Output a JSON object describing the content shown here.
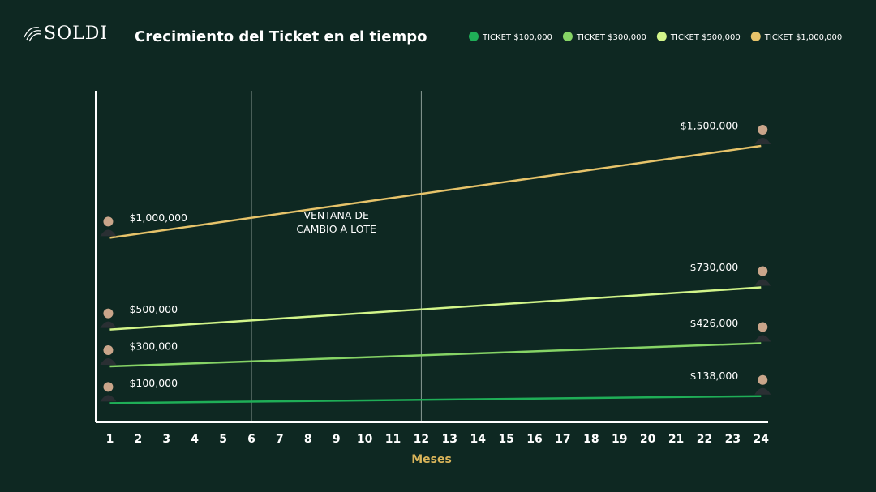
{
  "brand": "SOLDI",
  "chart_data": {
    "type": "line",
    "title": "Crecimiento del Ticket en el tiempo",
    "x_label": "Meses",
    "annotation": "VENTANA DE\nCAMBIO A LOTE",
    "window": [
      6,
      12
    ],
    "x": [
      1,
      24
    ],
    "xlim": [
      0.5,
      24.25
    ],
    "xticks": [
      1,
      2,
      3,
      4,
      5,
      6,
      7,
      8,
      9,
      10,
      11,
      12,
      13,
      14,
      15,
      16,
      17,
      18,
      19,
      20,
      21,
      22,
      23,
      24
    ],
    "ylim": [
      0,
      1800000
    ],
    "series": [
      {
        "name": "TICKET $100,000",
        "color": "#1fae57",
        "values": [
          100000,
          138000
        ],
        "value_labels": [
          "$100,000",
          "$138,000"
        ]
      },
      {
        "name": "TICKET $300,000",
        "color": "#86d466",
        "values": [
          300000,
          426000
        ],
        "value_labels": [
          "$300,000",
          "$426,000"
        ]
      },
      {
        "name": "TICKET $500,000",
        "color": "#d2f58a",
        "values": [
          500000,
          730000
        ],
        "value_labels": [
          "$500,000",
          "$730,000"
        ]
      },
      {
        "name": "TICKET $1,000,000",
        "color": "#e6c36a",
        "values": [
          1000000,
          1500000
        ],
        "value_labels": [
          "$1,000,000",
          "$1,500,000"
        ]
      }
    ]
  }
}
